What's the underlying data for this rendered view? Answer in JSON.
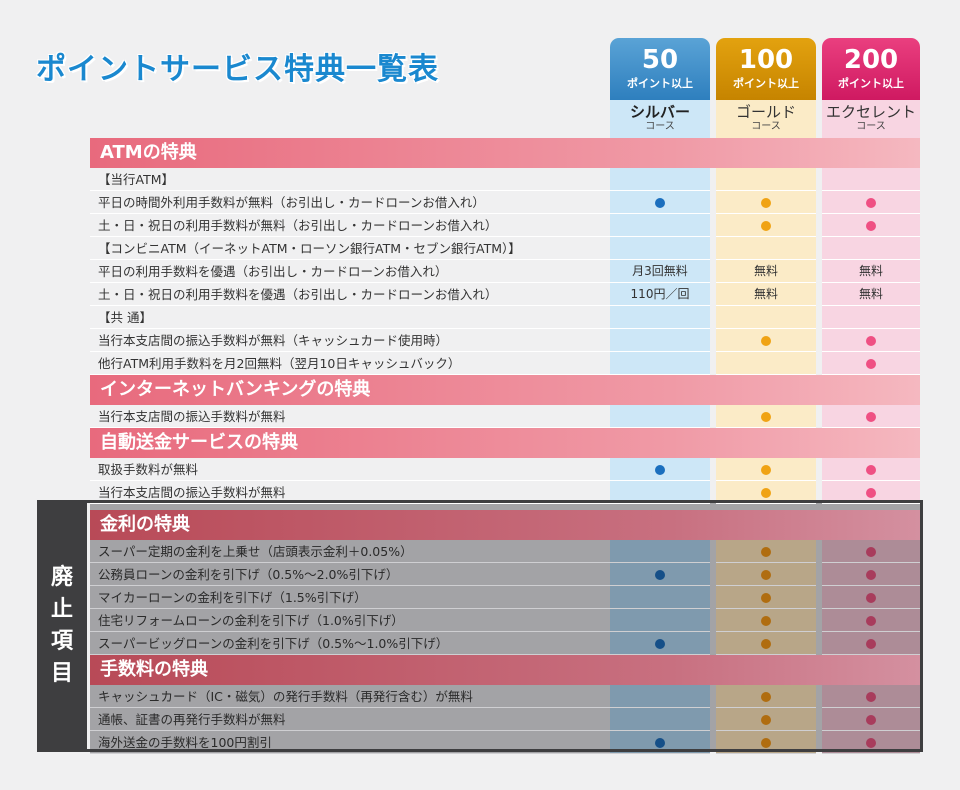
{
  "title": "ポイントサービス特典一覧表",
  "courses": [
    {
      "points": "50",
      "sub": "ポイント以上",
      "name": "シルバー",
      "course": "コース"
    },
    {
      "points": "100",
      "sub": "ポイント以上",
      "name": "ゴールド",
      "course": "コース"
    },
    {
      "points": "200",
      "sub": "ポイント以上",
      "name": "エクセレント",
      "course": "コース"
    }
  ],
  "abolished_label": [
    "廃",
    "止",
    "項",
    "目"
  ],
  "colors": {
    "silver": "#2e7fbe",
    "gold": "#c68400",
    "excellent": "#cf1961",
    "accent": "#1a88cf"
  },
  "sections": {
    "atm": "ATMの特典",
    "internet": "インターネットバンキングの特典",
    "auto": "自動送金サービスの特典",
    "rate": "金利の特典",
    "fee": "手数料の特典"
  },
  "rows": {
    "r1": {
      "label": "【当行ATM】"
    },
    "r2": {
      "label": "平日の時間外利用手数料が無料（お引出し・カードローンお借入れ）"
    },
    "r3": {
      "label": "土・日・祝日の利用手数料が無料（お引出し・カードローンお借入れ）"
    },
    "r4": {
      "label": "【コンビニATM（イーネットATM・ローソン銀行ATM・セブン銀行ATM）】"
    },
    "r5": {
      "label": "平日の利用手数料を優遇（お引出し・カードローンお借入れ）",
      "s": "月3回無料",
      "g": "無料",
      "e": "無料"
    },
    "r6": {
      "label": "土・日・祝日の利用手数料を優遇（お引出し・カードローンお借入れ）",
      "s": "110円／回",
      "g": "無料",
      "e": "無料"
    },
    "r7": {
      "label": "【共 通】"
    },
    "r8": {
      "label": "当行本支店間の振込手数料が無料（キャッシュカード使用時）"
    },
    "r9": {
      "label": "他行ATM利用手数料を月2回無料（翌月10日キャッシュバック）"
    },
    "r10": {
      "label": "当行本支店間の振込手数料が無料"
    },
    "r11": {
      "label": "取扱手数料が無料"
    },
    "r12": {
      "label": "当行本支店間の振込手数料が無料"
    },
    "r13": {
      "label": "スーパー定期の金利を上乗せ（店頭表示金利＋0.05%）"
    },
    "r14": {
      "label": "公務員ローンの金利を引下げ（0.5%〜2.0%引下げ）"
    },
    "r15": {
      "label": "マイカーローンの金利を引下げ（1.5%引下げ）"
    },
    "r16": {
      "label": "住宅リフォームローンの金利を引下げ（1.0%引下げ）"
    },
    "r17": {
      "label": "スーパービッグローンの金利を引下げ（0.5%〜1.0%引下げ）"
    },
    "r18": {
      "label": "キャッシュカード（IC・磁気）の発行手数料（再発行含む）が無料"
    },
    "r19": {
      "label": "通帳、証書の再発行手数料が無料"
    },
    "r20": {
      "label": "海外送金の手数料を100円割引"
    }
  }
}
